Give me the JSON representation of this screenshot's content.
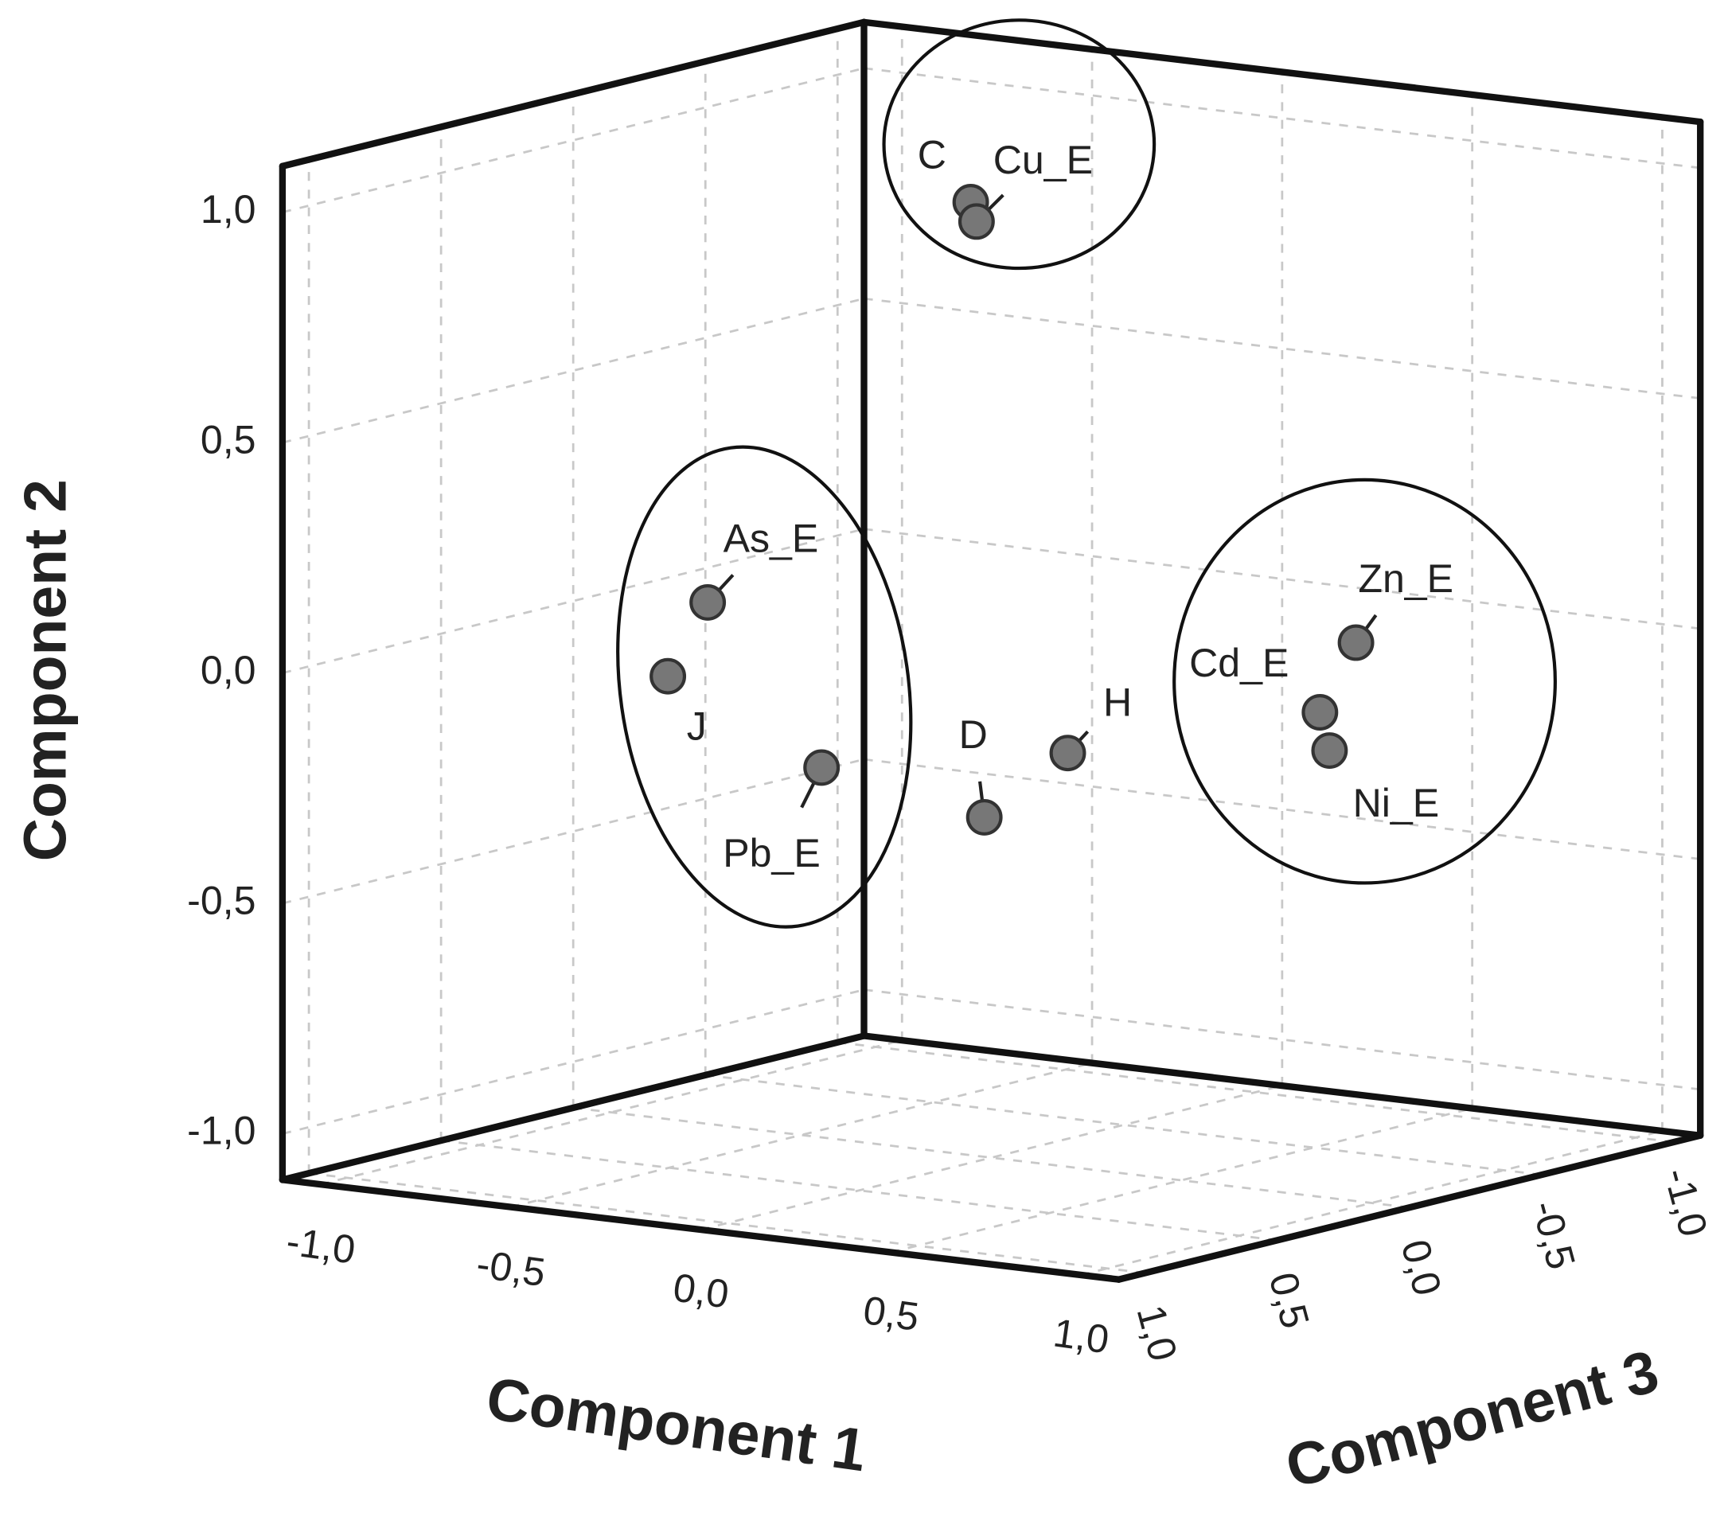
{
  "chart_data": {
    "type": "scatter3d",
    "x_label": "Component 1",
    "y_label": "Component 2",
    "z_label": "Component 3",
    "xlim": [
      -1.1,
      1.1
    ],
    "ylim": [
      -1.1,
      1.1
    ],
    "zlim": [
      -1.1,
      1.1
    ],
    "xticks": [
      {
        "value": -1,
        "label": "-1,0"
      },
      {
        "value": -0.5,
        "label": "-0,5"
      },
      {
        "value": 0,
        "label": "0,0"
      },
      {
        "value": 0.5,
        "label": "0,5"
      },
      {
        "value": 1,
        "label": "1,0"
      }
    ],
    "yticks": [
      {
        "value": -1,
        "label": "-1,0"
      },
      {
        "value": -0.5,
        "label": "-0,5"
      },
      {
        "value": 0,
        "label": "0,0"
      },
      {
        "value": 0.5,
        "label": "0,5"
      },
      {
        "value": 1,
        "label": "1,0"
      }
    ],
    "zticks": [
      {
        "value": -1,
        "label": "-1,0"
      },
      {
        "value": -0.5,
        "label": "-0,5"
      },
      {
        "value": 0,
        "label": "0,0"
      },
      {
        "value": 0.5,
        "label": "0,5"
      },
      {
        "value": 1,
        "label": "1,0"
      }
    ],
    "grid": true,
    "color": "#777777",
    "points": {
      "labels": [
        "C",
        "Cu_E",
        "As_E",
        "J",
        "Pb_E",
        "D",
        "H",
        "Zn_E",
        "Cd_E",
        "Ni_E"
      ],
      "x": [
        0.05,
        0.1,
        -0.19,
        -0.26,
        0.04,
        0.19,
        0.34,
        0.82,
        0.76,
        0.82
      ],
      "y": [
        1.0,
        0.97,
        0.2,
        0.04,
        -0.15,
        -0.3,
        -0.16,
        0.07,
        -0.08,
        -0.15
      ],
      "z": [
        0.15,
        0.2,
        0.8,
        0.85,
        0.7,
        0.3,
        0.2,
        -0.2,
        -0.15,
        -0.1
      ]
    }
  }
}
